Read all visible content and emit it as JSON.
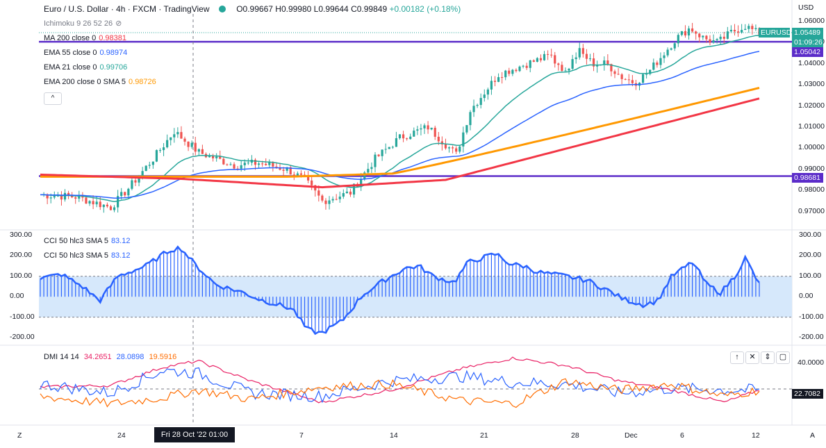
{
  "header": {
    "symbol_title": "Euro / U.S. Dollar · 4h · FXCM · TradingView",
    "open": "O0.99667",
    "high": "H0.99980",
    "low": "L0.99644",
    "close": "C0.99849",
    "change": "+0.00182 (+0.18%)",
    "currency": "USD"
  },
  "indicators": {
    "ichimoku": "Ichimoku 9 26 52 26",
    "ma200_label": "MA 200 close 0",
    "ma200_value": "0.98381",
    "ema55_label": "EMA 55 close 0",
    "ema55_value": "0.98974",
    "ema21_label": "EMA 21 close 0",
    "ema21_value": "0.99706",
    "ema200_label": "EMA 200 close 0 SMA 5",
    "ema200_value": "0.98726",
    "cci1_label": "CCI 50 hlc3 SMA 5",
    "cci1_value": "83.12",
    "cci2_label": "CCI 50 hlc3 SMA 5",
    "cci2_value": "83.12",
    "dmi_label": "DMI 14 14",
    "dmi_plus": "34.2651",
    "dmi_minus": "28.0898",
    "adx": "19.5916"
  },
  "price_axis": [
    "1.06000",
    "1.05000",
    "1.04000",
    "1.03000",
    "1.02000",
    "1.01000",
    "1.00000",
    "0.99000",
    "0.98000",
    "0.97000"
  ],
  "price_tags": {
    "eurusd": "EURUSD",
    "last": "1.05489",
    "countdown": "01:09:26",
    "line_upper": "1.05042",
    "line_lower": "0.98681"
  },
  "cci_axis_left": [
    "300.00",
    "200.00",
    "100.00",
    "0.00",
    "-100.00",
    "-200.00"
  ],
  "cci_axis_right": [
    "300.00",
    "200.00",
    "100.00",
    "0.00",
    "-100.00",
    "-200.00"
  ],
  "dmi_axis": {
    "top": "40.0000",
    "tag": "22.7082"
  },
  "time_axis": [
    "24",
    "7",
    "14",
    "21",
    "28",
    "Dec",
    "6",
    "12"
  ],
  "crosshair_time": "Fri 28 Oct '22   01:00",
  "controls": {
    "z": "Z",
    "a": "A",
    "up": "↑",
    "close": "✕",
    "collapse": "⇕",
    "maximize": "▢",
    "legend_toggle": "^"
  },
  "colors": {
    "up": "#26a69a",
    "down": "#ef5350",
    "ema21": "#26a69a",
    "ema55": "#2962ff",
    "ema200": "#ff9800",
    "ma200": "#f23645",
    "hline": "#5b2cc9",
    "cci": "#2962ff",
    "cci_band": "#d6e8fb",
    "dmi_plus": "#e91e63",
    "dmi_minus": "#2962ff",
    "adx": "#ff6d00"
  }
}
